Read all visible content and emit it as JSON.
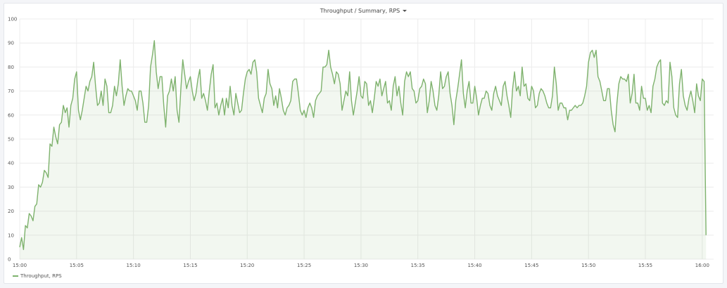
{
  "panel": {
    "title": "Throughput / Summary, RPS",
    "menu_icon": "chevron-down-icon"
  },
  "colors": {
    "series": "#7eb26d",
    "fill": "rgba(126,178,109,0.10)",
    "grid": "#ececec",
    "text": "#555555"
  },
  "chart_data": {
    "type": "area",
    "title": "Throughput / Summary, RPS",
    "xlabel": "",
    "ylabel": "",
    "ylim": [
      0,
      100
    ],
    "yticks": [
      0,
      10,
      20,
      30,
      40,
      50,
      60,
      70,
      80,
      90,
      100
    ],
    "xlim": [
      "15:00",
      "16:01"
    ],
    "xticks": [
      "15:00",
      "15:05",
      "15:10",
      "15:15",
      "15:20",
      "15:25",
      "15:30",
      "15:35",
      "15:40",
      "15:45",
      "15:50",
      "15:55",
      "16:00"
    ],
    "grid": true,
    "legend": "bottom-left",
    "series": [
      {
        "name": "Throughput, RPS",
        "x": [
          "15:00:00",
          "15:00:10",
          "15:00:20",
          "15:00:30",
          "15:00:40",
          "15:00:50",
          "15:01:00",
          "15:01:10",
          "15:01:20",
          "15:01:30",
          "15:01:40",
          "15:01:50",
          "15:02:00",
          "15:02:10",
          "15:02:20",
          "15:02:30",
          "15:02:40",
          "15:02:50",
          "15:03:00",
          "15:03:10",
          "15:03:20",
          "15:03:30",
          "15:03:40",
          "15:03:50",
          "15:04:00",
          "15:04:10",
          "15:04:20",
          "15:04:30",
          "15:04:40",
          "15:04:50",
          "15:05:00",
          "15:05:10",
          "15:05:20",
          "15:05:30",
          "15:05:40",
          "15:05:50",
          "15:06:00",
          "15:06:10",
          "15:06:20",
          "15:06:30",
          "15:06:40",
          "15:06:50",
          "15:07:00",
          "15:07:10",
          "15:07:20",
          "15:07:30",
          "15:07:40",
          "15:07:50",
          "15:08:00",
          "15:08:10",
          "15:08:20",
          "15:08:30",
          "15:08:40",
          "15:08:50",
          "15:09:00",
          "15:09:10",
          "15:09:20",
          "15:09:30",
          "15:09:40",
          "15:09:50",
          "15:10:00",
          "15:10:10",
          "15:10:20",
          "15:10:30",
          "15:10:40",
          "15:10:50",
          "15:11:00",
          "15:11:10",
          "15:11:20",
          "15:11:30",
          "15:11:40",
          "15:11:50",
          "15:12:00",
          "15:12:10",
          "15:12:20",
          "15:12:30",
          "15:12:40",
          "15:12:50",
          "15:13:00",
          "15:13:10",
          "15:13:20",
          "15:13:30",
          "15:13:40",
          "15:13:50",
          "15:14:00",
          "15:14:10",
          "15:14:20",
          "15:14:30",
          "15:14:40",
          "15:14:50",
          "15:15:00",
          "15:15:10",
          "15:15:20",
          "15:15:30",
          "15:15:40",
          "15:15:50",
          "15:16:00",
          "15:16:10",
          "15:16:20",
          "15:16:30",
          "15:16:40",
          "15:16:50",
          "15:17:00",
          "15:17:10",
          "15:17:20",
          "15:17:30",
          "15:17:40",
          "15:17:50",
          "15:18:00",
          "15:18:10",
          "15:18:20",
          "15:18:30",
          "15:18:40",
          "15:18:50",
          "15:19:00",
          "15:19:10",
          "15:19:20",
          "15:19:30",
          "15:19:40",
          "15:19:50",
          "15:20:00",
          "15:20:10",
          "15:20:20",
          "15:20:30",
          "15:20:40",
          "15:20:50",
          "15:21:00",
          "15:21:10",
          "15:21:20",
          "15:21:30",
          "15:21:40",
          "15:21:50",
          "15:22:00",
          "15:22:10",
          "15:22:20",
          "15:22:30",
          "15:22:40",
          "15:22:50",
          "15:23:00",
          "15:23:10",
          "15:23:20",
          "15:23:30",
          "15:23:40",
          "15:23:50",
          "15:24:00",
          "15:24:10",
          "15:24:20",
          "15:24:30",
          "15:24:40",
          "15:24:50",
          "15:25:00",
          "15:25:10",
          "15:25:20",
          "15:25:30",
          "15:25:40",
          "15:25:50",
          "15:26:00",
          "15:26:10",
          "15:26:20",
          "15:26:30",
          "15:26:40",
          "15:26:50",
          "15:27:00",
          "15:27:10",
          "15:27:20",
          "15:27:30",
          "15:27:40",
          "15:27:50",
          "15:28:00",
          "15:28:10",
          "15:28:20",
          "15:28:30",
          "15:28:40",
          "15:28:50",
          "15:29:00",
          "15:29:10",
          "15:29:20",
          "15:29:30",
          "15:29:40",
          "15:29:50",
          "15:30:00",
          "15:30:10",
          "15:30:20",
          "15:30:30",
          "15:30:40",
          "15:30:50",
          "15:31:00",
          "15:31:10",
          "15:31:20",
          "15:31:30",
          "15:31:40",
          "15:31:50",
          "15:32:00",
          "15:32:10",
          "15:32:20",
          "15:32:30",
          "15:32:40",
          "15:32:50",
          "15:33:00",
          "15:33:10",
          "15:33:20",
          "15:33:30",
          "15:33:40",
          "15:33:50",
          "15:34:00",
          "15:34:10",
          "15:34:20",
          "15:34:30",
          "15:34:40",
          "15:34:50",
          "15:35:00",
          "15:35:10",
          "15:35:20",
          "15:35:30",
          "15:35:40",
          "15:35:50",
          "15:36:00",
          "15:36:10",
          "15:36:20",
          "15:36:30",
          "15:36:40",
          "15:36:50",
          "15:37:00",
          "15:37:10",
          "15:37:20",
          "15:37:30",
          "15:37:40",
          "15:37:50",
          "15:38:00",
          "15:38:10",
          "15:38:20",
          "15:38:30",
          "15:38:40",
          "15:38:50",
          "15:39:00",
          "15:39:10",
          "15:39:20",
          "15:39:30",
          "15:39:40",
          "15:39:50",
          "15:40:00",
          "15:40:10",
          "15:40:20",
          "15:40:30",
          "15:40:40",
          "15:40:50",
          "15:41:00",
          "15:41:10",
          "15:41:20",
          "15:41:30",
          "15:41:40",
          "15:41:50",
          "15:42:00",
          "15:42:10",
          "15:42:20",
          "15:42:30",
          "15:42:40",
          "15:42:50",
          "15:43:00",
          "15:43:10",
          "15:43:20",
          "15:43:30",
          "15:43:40",
          "15:43:50",
          "15:44:00",
          "15:44:10",
          "15:44:20",
          "15:44:30",
          "15:44:40",
          "15:44:50",
          "15:45:00",
          "15:45:10",
          "15:45:20",
          "15:45:30",
          "15:45:40",
          "15:45:50",
          "15:46:00",
          "15:46:10",
          "15:46:20",
          "15:46:30",
          "15:46:40",
          "15:46:50",
          "15:47:00",
          "15:47:10",
          "15:47:20",
          "15:47:30",
          "15:47:40",
          "15:47:50",
          "15:48:00",
          "15:48:10",
          "15:48:20",
          "15:48:30",
          "15:48:40",
          "15:48:50",
          "15:49:00",
          "15:49:10",
          "15:49:20",
          "15:49:30",
          "15:49:40",
          "15:49:50",
          "15:50:00",
          "15:50:10",
          "15:50:20",
          "15:50:30",
          "15:50:40",
          "15:50:50",
          "15:51:00",
          "15:51:10",
          "15:51:20",
          "15:51:30",
          "15:51:40",
          "15:51:50",
          "15:52:00",
          "15:52:10",
          "15:52:20",
          "15:52:30",
          "15:52:40",
          "15:52:50",
          "15:53:00",
          "15:53:10",
          "15:53:20",
          "15:53:30",
          "15:53:40",
          "15:53:50",
          "15:54:00",
          "15:54:10",
          "15:54:20",
          "15:54:30",
          "15:54:40",
          "15:54:50",
          "15:55:00",
          "15:55:10",
          "15:55:20",
          "15:55:30",
          "15:55:40",
          "15:55:50",
          "15:56:00",
          "15:56:10",
          "15:56:20",
          "15:56:30",
          "15:56:40",
          "15:56:50",
          "15:57:00",
          "15:57:10",
          "15:57:20",
          "15:57:30",
          "15:57:40",
          "15:57:50",
          "15:58:00",
          "15:58:10",
          "15:58:20",
          "15:58:30",
          "15:58:40",
          "15:58:50",
          "15:59:00",
          "15:59:10",
          "15:59:20",
          "15:59:30",
          "15:59:40",
          "15:59:50",
          "16:00:00",
          "16:00:10",
          "16:00:20"
        ],
        "values": [
          5,
          9,
          4,
          14,
          13,
          19,
          18,
          16,
          22,
          23,
          31,
          30,
          32,
          37,
          36,
          34,
          48,
          47,
          55,
          51,
          48,
          56,
          57,
          64,
          61,
          63,
          55,
          64,
          67,
          75,
          78,
          62,
          58,
          62,
          67,
          72,
          70,
          74,
          76,
          82,
          72,
          64,
          65,
          70,
          64,
          75,
          72,
          61,
          61,
          64,
          72,
          68,
          73,
          83,
          72,
          64,
          68,
          71,
          70,
          70,
          68,
          66,
          62,
          70,
          70,
          65,
          57,
          57,
          64,
          80,
          85,
          91,
          78,
          71,
          76,
          76,
          64,
          55,
          68,
          70,
          75,
          70,
          76,
          62,
          57,
          71,
          83,
          77,
          71,
          74,
          76,
          70,
          66,
          69,
          75,
          79,
          67,
          69,
          66,
          62,
          70,
          77,
          81,
          63,
          65,
          60,
          64,
          67,
          60,
          67,
          63,
          72,
          64,
          60,
          69,
          65,
          61,
          62,
          69,
          75,
          78,
          79,
          77,
          82,
          83,
          78,
          67,
          64,
          61,
          67,
          69,
          79,
          73,
          71,
          64,
          68,
          63,
          71,
          67,
          62,
          60,
          63,
          64,
          66,
          74,
          75,
          75,
          69,
          62,
          60,
          62,
          59,
          63,
          65,
          63,
          59,
          66,
          68,
          69,
          70,
          80,
          80,
          81,
          87,
          80,
          77,
          73,
          78,
          77,
          73,
          62,
          66,
          70,
          68,
          78,
          66,
          60,
          65,
          70,
          76,
          68,
          67,
          74,
          73,
          64,
          66,
          61,
          67,
          74,
          72,
          75,
          68,
          71,
          74,
          65,
          66,
          62,
          72,
          76,
          68,
          72,
          65,
          60,
          74,
          78,
          76,
          78,
          71,
          70,
          65,
          66,
          71,
          72,
          75,
          73,
          61,
          66,
          74,
          70,
          64,
          62,
          68,
          78,
          71,
          72,
          76,
          78,
          69,
          64,
          56,
          66,
          71,
          77,
          83,
          69,
          63,
          70,
          74,
          65,
          65,
          72,
          67,
          60,
          64,
          67,
          67,
          70,
          69,
          64,
          62,
          69,
          72,
          68,
          66,
          64,
          72,
          74,
          68,
          64,
          59,
          71,
          78,
          70,
          72,
          68,
          80,
          72,
          73,
          67,
          66,
          72,
          70,
          63,
          64,
          69,
          71,
          70,
          68,
          65,
          63,
          63,
          68,
          80,
          73,
          62,
          65,
          65,
          63,
          63,
          58,
          62,
          62,
          63,
          64,
          63,
          64,
          64,
          65,
          68,
          72,
          82,
          86,
          87,
          84,
          87,
          76,
          74,
          70,
          66,
          66,
          71,
          71,
          62,
          56,
          53,
          65,
          73,
          76,
          75,
          75,
          74,
          77,
          65,
          69,
          77,
          65,
          65,
          62,
          72,
          67,
          67,
          62,
          64,
          61,
          72,
          75,
          80,
          82,
          83,
          65,
          64,
          66,
          65,
          82,
          76,
          63,
          60,
          59,
          73,
          79,
          68,
          64,
          62,
          67,
          70,
          66,
          61,
          73,
          68,
          66,
          75,
          74,
          10
        ]
      }
    ]
  }
}
